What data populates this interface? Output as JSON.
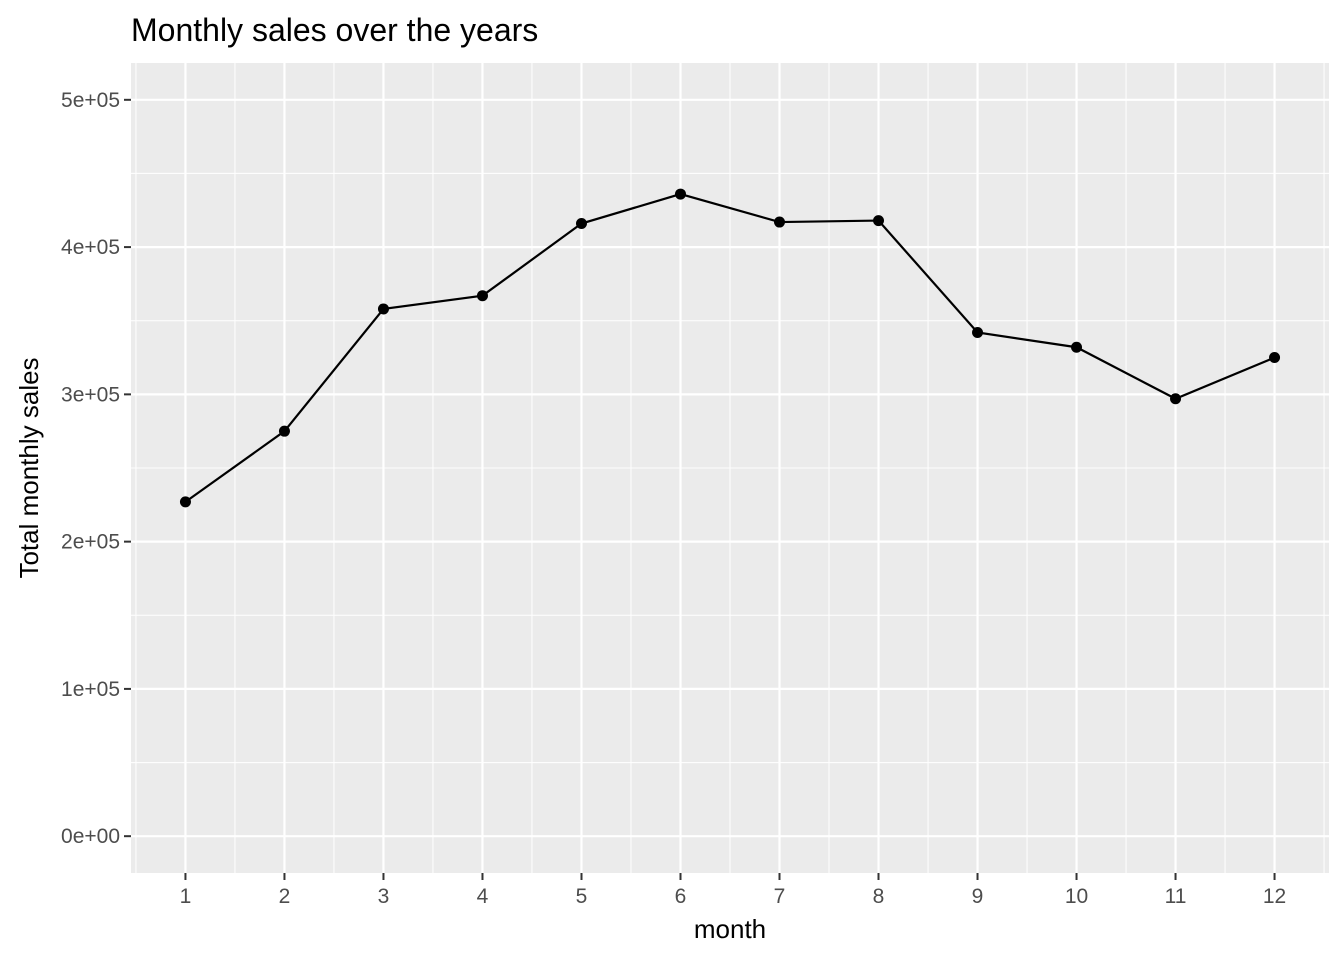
{
  "chart_data": {
    "type": "line",
    "title": "Monthly sales over the years",
    "xlabel": "month",
    "ylabel": "Total monthly sales",
    "x": [
      1,
      2,
      3,
      4,
      5,
      6,
      7,
      8,
      9,
      10,
      11,
      12
    ],
    "x_tick_labels": [
      "1",
      "2",
      "3",
      "4",
      "5",
      "6",
      "7",
      "8",
      "9",
      "10",
      "11",
      "12"
    ],
    "y_ticks": [
      0,
      100000,
      200000,
      300000,
      400000,
      500000
    ],
    "y_tick_labels": [
      "0e+00",
      "1e+05",
      "2e+05",
      "3e+05",
      "4e+05",
      "5e+05"
    ],
    "xlim": [
      0.45,
      12.55
    ],
    "ylim": [
      -25000,
      525000
    ],
    "grid": true,
    "legend": "none",
    "series": [
      {
        "values": [
          227000,
          275000,
          358000,
          367000,
          416000,
          436000,
          417000,
          418000,
          342000,
          332000,
          297000,
          325000
        ],
        "color": "#000000"
      }
    ],
    "panel_background": "#ebebeb",
    "grid_color": "#ffffff"
  }
}
